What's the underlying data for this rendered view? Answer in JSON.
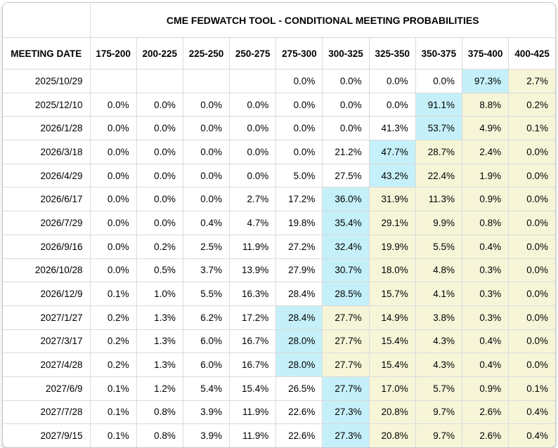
{
  "colors": {
    "max_cell_highlight": "#C5F0F9",
    "right_of_max_highlight": "#F7F5D8",
    "grid_line": "#DADADA",
    "text": "#000000",
    "background": "#FFFFFF"
  },
  "chart_data": {
    "type": "table",
    "title": "CME FEDWATCH TOOL - CONDITIONAL MEETING PROBABILITIES",
    "row_header": "MEETING DATE",
    "rate_columns": [
      "175-200",
      "200-225",
      "225-250",
      "250-275",
      "275-300",
      "300-325",
      "325-350",
      "350-375",
      "375-400",
      "400-425"
    ],
    "highlight_legend": "cyan = highest probability cell in row, yellow = cells to the right of the highest cell",
    "rows": [
      {
        "date": "2025/10/29",
        "values": [
          "",
          "",
          "",
          "",
          "0.0%",
          "0.0%",
          "0.0%",
          "0.0%",
          "97.3%",
          "2.7%"
        ],
        "max_index": 8
      },
      {
        "date": "2025/12/10",
        "values": [
          "0.0%",
          "0.0%",
          "0.0%",
          "0.0%",
          "0.0%",
          "0.0%",
          "0.0%",
          "91.1%",
          "8.8%",
          "0.2%"
        ],
        "max_index": 7
      },
      {
        "date": "2026/1/28",
        "values": [
          "0.0%",
          "0.0%",
          "0.0%",
          "0.0%",
          "0.0%",
          "0.0%",
          "41.3%",
          "53.7%",
          "4.9%",
          "0.1%"
        ],
        "max_index": 7
      },
      {
        "date": "2026/3/18",
        "values": [
          "0.0%",
          "0.0%",
          "0.0%",
          "0.0%",
          "0.0%",
          "21.2%",
          "47.7%",
          "28.7%",
          "2.4%",
          "0.0%"
        ],
        "max_index": 6
      },
      {
        "date": "2026/4/29",
        "values": [
          "0.0%",
          "0.0%",
          "0.0%",
          "0.0%",
          "5.0%",
          "27.5%",
          "43.2%",
          "22.4%",
          "1.9%",
          "0.0%"
        ],
        "max_index": 6
      },
      {
        "date": "2026/6/17",
        "values": [
          "0.0%",
          "0.0%",
          "0.0%",
          "2.7%",
          "17.2%",
          "36.0%",
          "31.9%",
          "11.3%",
          "0.9%",
          "0.0%"
        ],
        "max_index": 5
      },
      {
        "date": "2026/7/29",
        "values": [
          "0.0%",
          "0.0%",
          "0.4%",
          "4.7%",
          "19.8%",
          "35.4%",
          "29.1%",
          "9.9%",
          "0.8%",
          "0.0%"
        ],
        "max_index": 5
      },
      {
        "date": "2026/9/16",
        "values": [
          "0.0%",
          "0.2%",
          "2.5%",
          "11.9%",
          "27.2%",
          "32.4%",
          "19.9%",
          "5.5%",
          "0.4%",
          "0.0%"
        ],
        "max_index": 5
      },
      {
        "date": "2026/10/28",
        "values": [
          "0.0%",
          "0.5%",
          "3.7%",
          "13.9%",
          "27.9%",
          "30.7%",
          "18.0%",
          "4.8%",
          "0.3%",
          "0.0%"
        ],
        "max_index": 5
      },
      {
        "date": "2026/12/9",
        "values": [
          "0.1%",
          "1.0%",
          "5.5%",
          "16.3%",
          "28.4%",
          "28.5%",
          "15.7%",
          "4.1%",
          "0.3%",
          "0.0%"
        ],
        "max_index": 5
      },
      {
        "date": "2027/1/27",
        "values": [
          "0.2%",
          "1.3%",
          "6.2%",
          "17.2%",
          "28.4%",
          "27.7%",
          "14.9%",
          "3.8%",
          "0.3%",
          "0.0%"
        ],
        "max_index": 4
      },
      {
        "date": "2027/3/17",
        "values": [
          "0.2%",
          "1.3%",
          "6.0%",
          "16.7%",
          "28.0%",
          "27.7%",
          "15.4%",
          "4.3%",
          "0.4%",
          "0.0%"
        ],
        "max_index": 4
      },
      {
        "date": "2027/4/28",
        "values": [
          "0.2%",
          "1.3%",
          "6.0%",
          "16.7%",
          "28.0%",
          "27.7%",
          "15.4%",
          "4.3%",
          "0.4%",
          "0.0%"
        ],
        "max_index": 4
      },
      {
        "date": "2027/6/9",
        "values": [
          "0.1%",
          "1.2%",
          "5.4%",
          "15.4%",
          "26.5%",
          "27.7%",
          "17.0%",
          "5.7%",
          "0.9%",
          "0.1%"
        ],
        "max_index": 5
      },
      {
        "date": "2027/7/28",
        "values": [
          "0.1%",
          "0.8%",
          "3.9%",
          "11.9%",
          "22.6%",
          "27.3%",
          "20.8%",
          "9.7%",
          "2.6%",
          "0.4%"
        ],
        "max_index": 5
      },
      {
        "date": "2027/9/15",
        "values": [
          "0.1%",
          "0.8%",
          "3.9%",
          "11.9%",
          "22.6%",
          "27.3%",
          "20.8%",
          "9.7%",
          "2.6%",
          "0.4%"
        ],
        "max_index": 5
      }
    ]
  }
}
